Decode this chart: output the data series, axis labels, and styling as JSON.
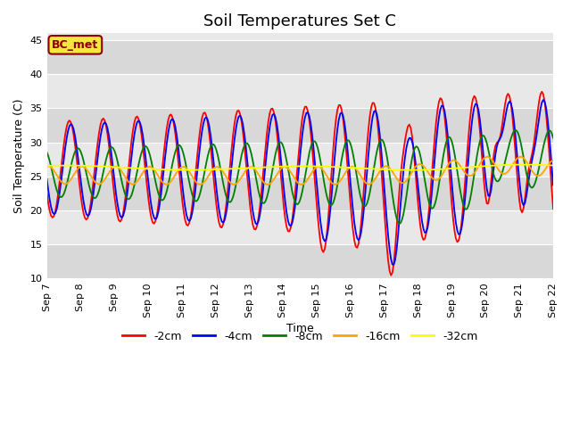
{
  "title": "Soil Temperatures Set C",
  "xlabel": "Time",
  "ylabel": "Soil Temperature (C)",
  "ylim": [
    10,
    46
  ],
  "annotation": "BC_met",
  "legend_labels": [
    "-2cm",
    "-4cm",
    "-8cm",
    "-16cm",
    "-32cm"
  ],
  "legend_colors": [
    "red",
    "blue",
    "green",
    "orange",
    "yellow"
  ],
  "plot_bg_color": "#e8e8e8",
  "alt_band_color": "#d0d0d0",
  "grid_color": "#c8c8c8",
  "tick_dates": [
    "Sep 7",
    "Sep 8",
    "Sep 9",
    "Sep 10",
    "Sep 11",
    "Sep 12",
    "Sep 13",
    "Sep 14",
    "Sep 15",
    "Sep 16",
    "Sep 17",
    "Sep 18",
    "Sep 19",
    "Sep 20",
    "Sep 21",
    "Sep 22"
  ],
  "title_fontsize": 13,
  "axis_label_fontsize": 9,
  "tick_fontsize": 8
}
